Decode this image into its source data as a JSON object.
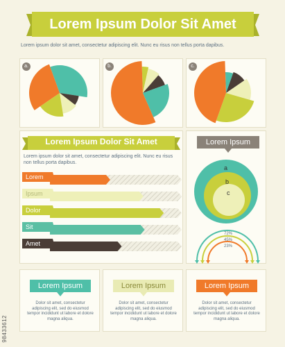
{
  "header": {
    "title": "Lorem Ipsum Dolor Sit Amet",
    "text": "Lorem ipsum dolor sit amet, consectetur adipiscing elit. Nunc eu risus non tellus porta dapibus."
  },
  "pies": [
    {
      "label": "a."
    },
    {
      "label": "b."
    },
    {
      "label": "c."
    }
  ],
  "middle": {
    "title": "Lorem Ipsum Dolor Sit Amet",
    "text": "Lorem ipsum dolor sit amet, consectetur adipiscing elit. Nunc eu risus non tellus porta dapibus."
  },
  "bars": [
    {
      "label": "Lorem",
      "value": 0.44,
      "color": "#f07a2a"
    },
    {
      "label": "Ipsum",
      "value": 0.7,
      "color": "#eef0b8"
    },
    {
      "label": "Dolor",
      "value": 0.86,
      "color": "#c8cf3c"
    },
    {
      "label": "Sit",
      "value": 0.71,
      "color": "#5bbfa3"
    },
    {
      "label": "Amet",
      "value": 0.53,
      "color": "#4a3d36"
    }
  ],
  "circles": {
    "title": "Lorem Ipsum",
    "labels": [
      "a",
      "b",
      "c"
    ]
  },
  "arcs": {
    "labels": [
      "72%",
      "45%",
      "23%"
    ]
  },
  "footer": [
    {
      "title": "Lorem Ipsum",
      "color": "#4fbfa8",
      "text": "Dolor sit amet, consectetur adipiscing elit, sed do eiusmod tempor incididunt ut labore et dolore magna aliqua."
    },
    {
      "title": "Lorem Ipsum",
      "color": "#e9ebb4",
      "text": "Dolor sit amet, consectetur adipiscing elit, sed do eiusmod tempor incididunt ut labore et dolore magna aliqua."
    },
    {
      "title": "Lorem Ipsum",
      "color": "#f07a2a",
      "text": "Dolor sit amet, consectetur adipiscing elit, sed do eiusmod tempor incididunt ut labore et dolore magna aliqua."
    }
  ],
  "watermark": "98433612",
  "colors": {
    "teal": "#4fbfa8",
    "orange": "#f07a2a",
    "lime": "#c8cf3c",
    "cream": "#eef0b8",
    "brown": "#4a3d36",
    "gray": "#8a8278"
  }
}
